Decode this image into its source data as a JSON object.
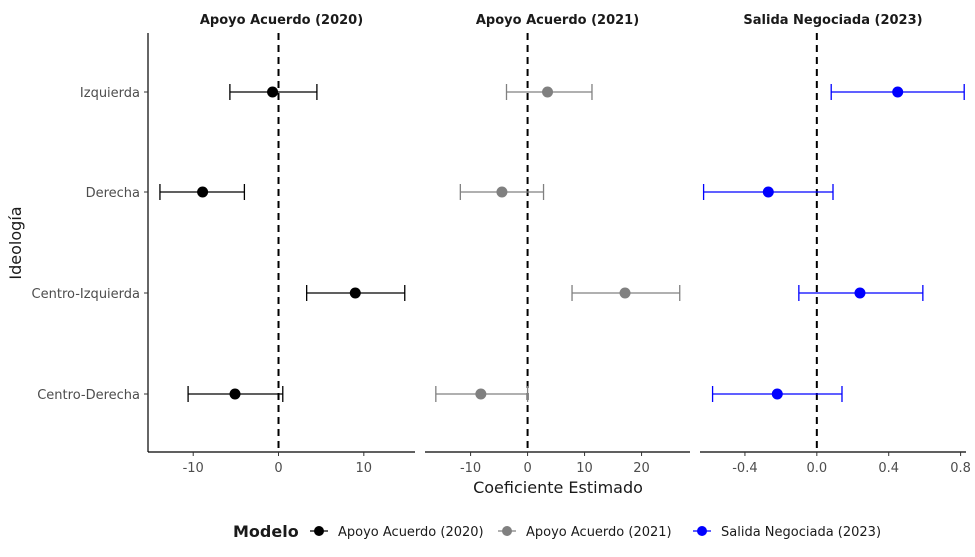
{
  "chart_data": {
    "type": "forest",
    "xlabel": "Coeficiente Estimado",
    "ylabel": "Ideología",
    "categories": [
      "Izquierda",
      "Derecha",
      "Centro-Izquierda",
      "Centro-Derecha"
    ],
    "legend": {
      "title": "Modelo",
      "position": "bottom",
      "entries": [
        "Apoyo Acuerdo (2020)",
        "Apoyo Acuerdo (2021)",
        "Salida Negociada (2023)"
      ]
    },
    "facets": [
      {
        "title": "Apoyo Acuerdo (2020)",
        "color": "#000000",
        "xlim": [
          -15.3,
          16.0
        ],
        "ticks": [
          -10,
          0,
          10
        ],
        "tick_labels": [
          "-10",
          "0",
          "10"
        ],
        "points": [
          {
            "category": "Izquierda",
            "estimate": -0.7,
            "low": -5.7,
            "high": 4.5
          },
          {
            "category": "Derecha",
            "estimate": -8.9,
            "low": -13.9,
            "high": -4.0
          },
          {
            "category": "Centro-Izquierda",
            "estimate": 9.0,
            "low": 3.3,
            "high": 14.8
          },
          {
            "category": "Centro-Derecha",
            "estimate": -5.1,
            "low": -10.6,
            "high": 0.5
          }
        ]
      },
      {
        "title": "Apoyo Acuerdo (2021)",
        "color": "#808080",
        "xlim": [
          -18.0,
          28.5
        ],
        "ticks": [
          -10,
          0,
          10,
          20
        ],
        "tick_labels": [
          "-10",
          "0",
          "10",
          "20"
        ],
        "points": [
          {
            "category": "Izquierda",
            "estimate": 3.5,
            "low": -3.7,
            "high": 11.3
          },
          {
            "category": "Derecha",
            "estimate": -4.5,
            "low": -11.8,
            "high": 2.8
          },
          {
            "category": "Centro-Izquierda",
            "estimate": 17.1,
            "low": 7.8,
            "high": 26.7
          },
          {
            "category": "Centro-Derecha",
            "estimate": -8.2,
            "low": -16.1,
            "high": 0.0
          }
        ]
      },
      {
        "title": "Salida Negociada (2023)",
        "color": "#0000ff",
        "xlim": [
          -0.65,
          0.83
        ],
        "ticks": [
          -0.4,
          0.0,
          0.4,
          0.8
        ],
        "tick_labels": [
          "-0.4",
          "0.0",
          "0.4",
          "0.8"
        ],
        "points": [
          {
            "category": "Izquierda",
            "estimate": 0.45,
            "low": 0.08,
            "high": 0.82
          },
          {
            "category": "Derecha",
            "estimate": -0.27,
            "low": -0.63,
            "high": 0.09
          },
          {
            "category": "Centro-Izquierda",
            "estimate": 0.24,
            "low": -0.1,
            "high": 0.59
          },
          {
            "category": "Centro-Derecha",
            "estimate": -0.22,
            "low": -0.58,
            "high": 0.14
          }
        ]
      }
    ]
  }
}
